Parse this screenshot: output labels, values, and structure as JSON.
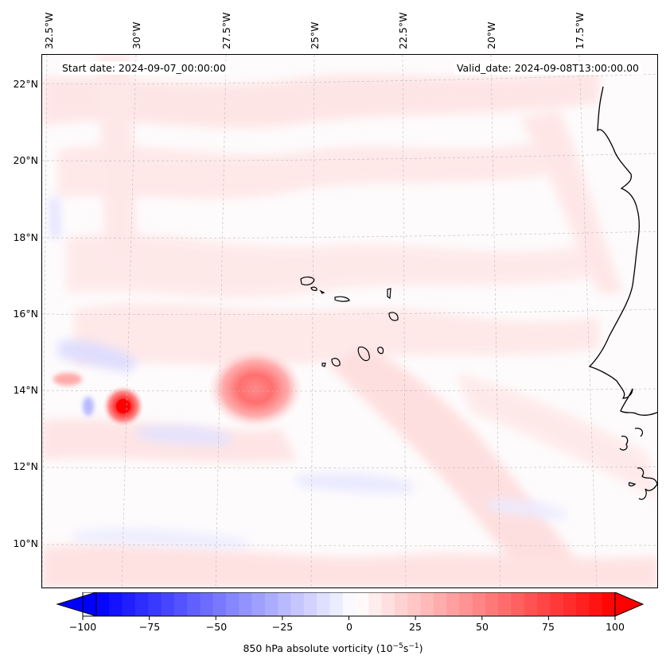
{
  "map": {
    "start_date": "Start date: 2024-09-07_00:00:00",
    "valid_date": "Valid_date: 2024-09-08T13:00:00.00",
    "lon_labels": [
      "32.5°W",
      "30°W",
      "27.5°W",
      "25°W",
      "22.5°W",
      "20°W",
      "17.5°W"
    ],
    "lat_labels": [
      "22°N",
      "20°N",
      "18°N",
      "16°N",
      "14°N",
      "12°N",
      "10°N"
    ],
    "gridlines": true
  },
  "colorbar": {
    "label": "850 hPa absolute vorticity (10",
    "label_exp1": "−5",
    "label_mid": "s",
    "label_exp2": "−1",
    "label_end": ")",
    "ticks": [
      "−100",
      "−75",
      "−50",
      "−25",
      "0",
      "25",
      "50",
      "75",
      "100"
    ],
    "min": -100,
    "max": 100,
    "colormap": "bwr",
    "extend": "both"
  },
  "features": {
    "vortex_strong": {
      "lon": -30.1,
      "lat": 13.6,
      "peak_vorticity": 100
    },
    "vortex_broad": {
      "lon": -26.1,
      "lat": 14.1,
      "peak_vorticity": 45
    }
  },
  "colors": {
    "negative": "#0000ff",
    "zero": "#ffffff",
    "positive": "#ff0000"
  }
}
